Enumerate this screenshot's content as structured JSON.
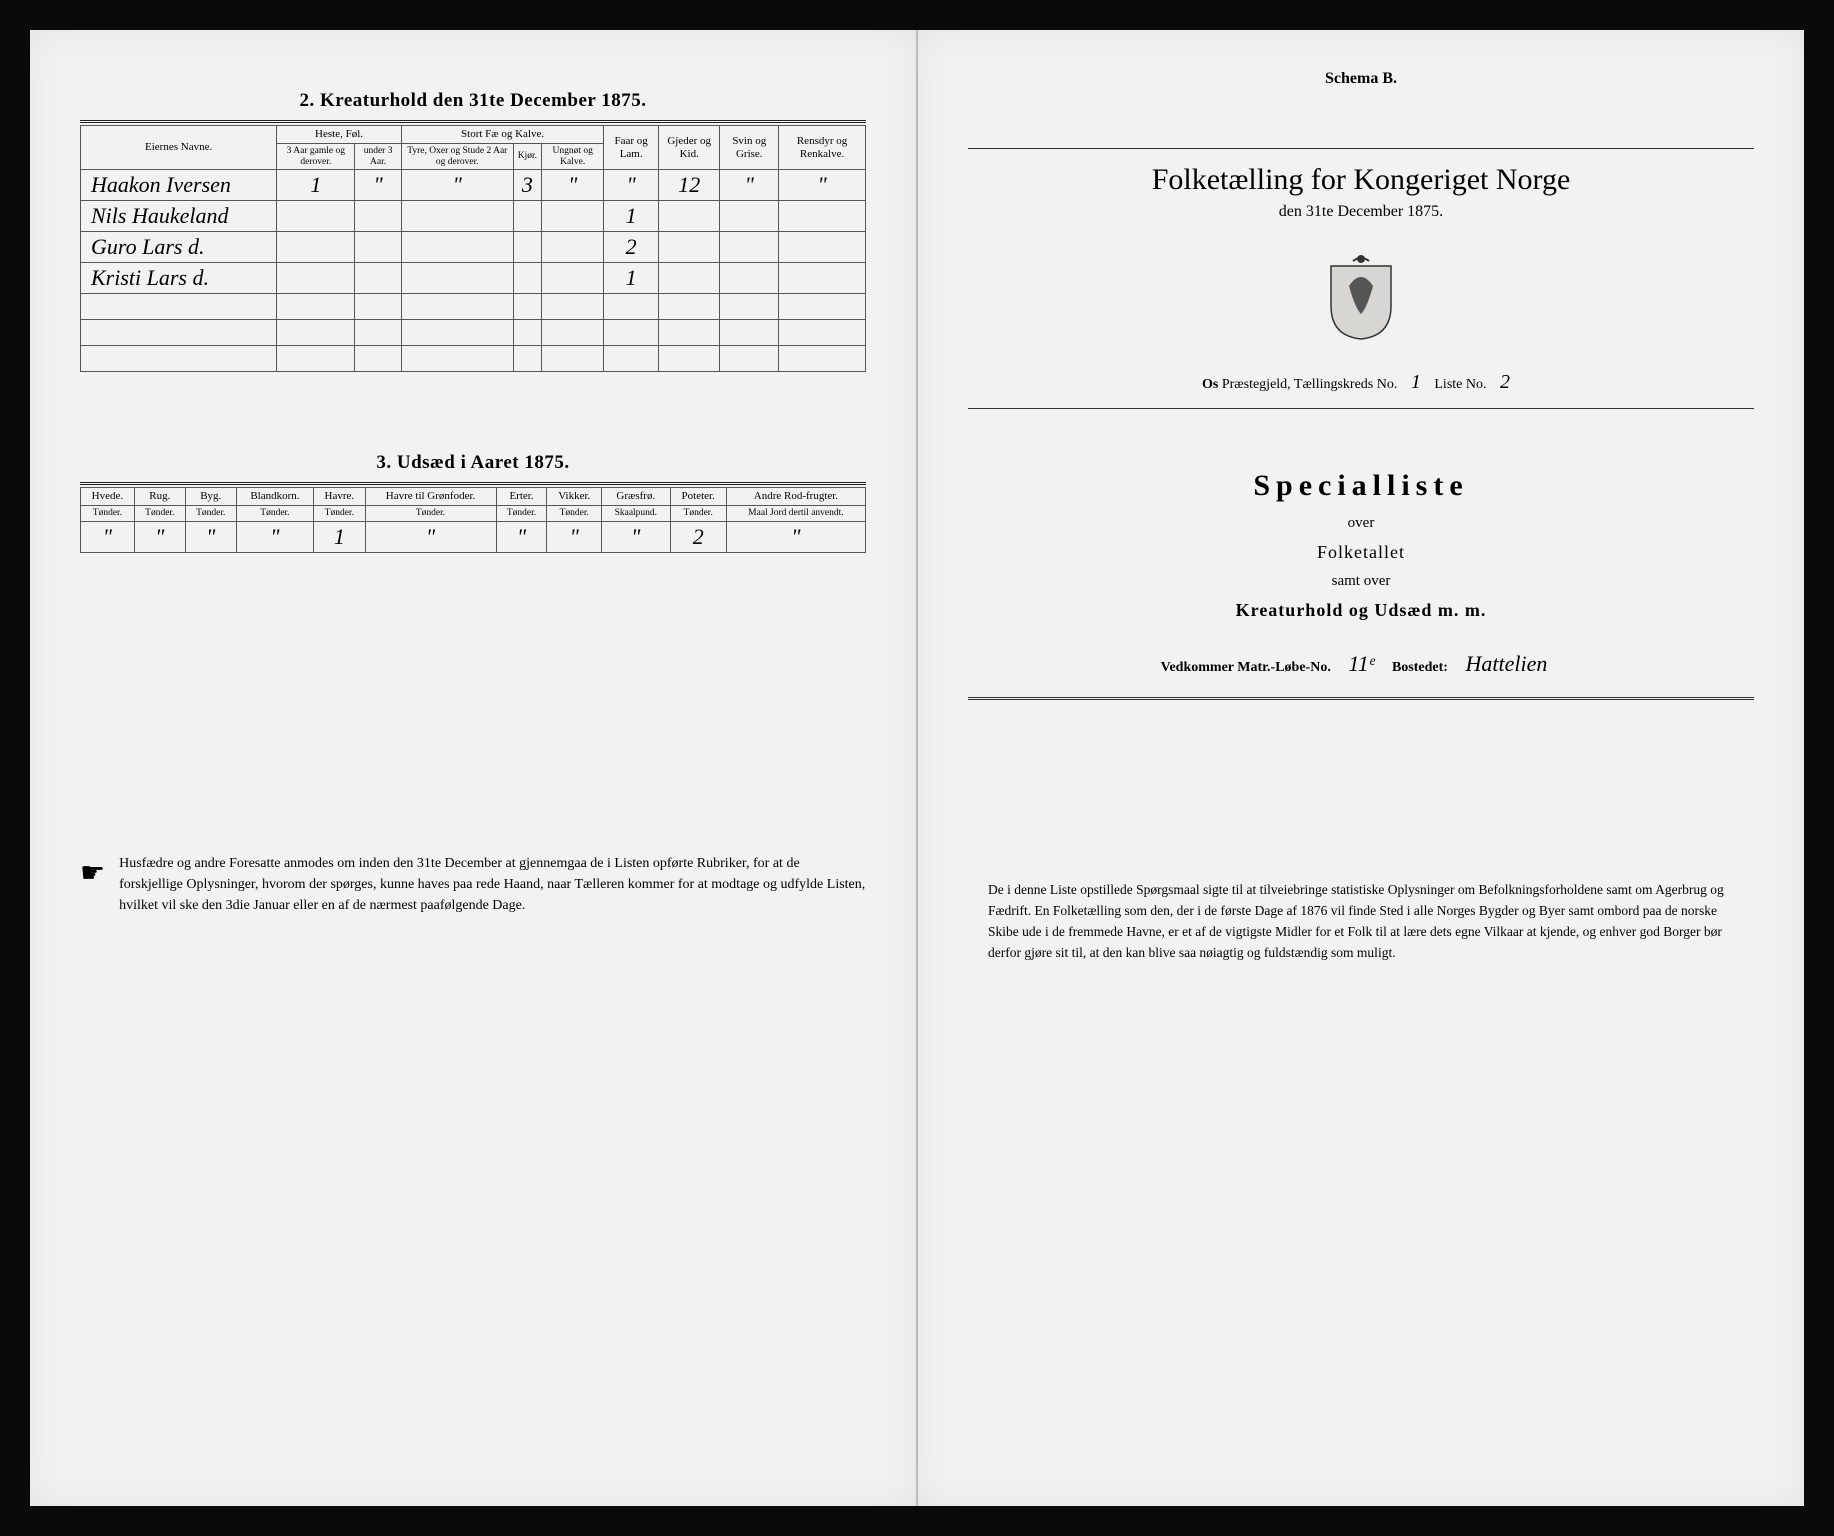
{
  "left": {
    "section2_title": "2.  Kreaturhold den 31te December 1875.",
    "table2": {
      "col_owner": "Eiernes Navne.",
      "grp_horses": "Heste, Føl.",
      "grp_cattle": "Stort Fæ og Kalve.",
      "col_sheep": "Faar og Lam.",
      "col_goats": "Gjeder og Kid.",
      "col_pigs": "Svin og Grise.",
      "col_reindeer": "Rensdyr og Renkalve.",
      "sub_h1": "3 Aar gamle og derover.",
      "sub_h2": "under 3 Aar.",
      "sub_c1": "Tyre, Oxer og Stude 2 Aar og derover.",
      "sub_c2": "Kjør.",
      "sub_c3": "Ungnøt og Kalve.",
      "rows": [
        {
          "name": "Haakon Iversen",
          "h1": "1",
          "h2": "\"",
          "c1": "\"",
          "c2": "3",
          "c3": "\"",
          "sheep": "\"",
          "goats": "12",
          "pigs": "\"",
          "rein": "\""
        },
        {
          "name": "Nils Haukeland",
          "h1": "",
          "h2": "",
          "c1": "",
          "c2": "",
          "c3": "",
          "sheep": "1",
          "goats": "",
          "pigs": "",
          "rein": ""
        },
        {
          "name": "Guro Lars d.",
          "h1": "",
          "h2": "",
          "c1": "",
          "c2": "",
          "c3": "",
          "sheep": "2",
          "goats": "",
          "pigs": "",
          "rein": ""
        },
        {
          "name": "Kristi Lars d.",
          "h1": "",
          "h2": "",
          "c1": "",
          "c2": "",
          "c3": "",
          "sheep": "1",
          "goats": "",
          "pigs": "",
          "rein": ""
        }
      ]
    },
    "section3_title": "3.  Udsæd i Aaret 1875.",
    "table3": {
      "cols": [
        {
          "h": "Hvede.",
          "u": "Tønder."
        },
        {
          "h": "Rug.",
          "u": "Tønder."
        },
        {
          "h": "Byg.",
          "u": "Tønder."
        },
        {
          "h": "Blandkorn.",
          "u": "Tønder."
        },
        {
          "h": "Havre.",
          "u": "Tønder."
        },
        {
          "h": "Havre til Grønfoder.",
          "u": "Tønder."
        },
        {
          "h": "Erter.",
          "u": "Tønder."
        },
        {
          "h": "Vikker.",
          "u": "Tønder."
        },
        {
          "h": "Græsfrø.",
          "u": "Skaalpund."
        },
        {
          "h": "Poteter.",
          "u": "Tønder."
        },
        {
          "h": "Andre Rod-frugter.",
          "u": "Maal Jord dertil anvendt."
        }
      ],
      "row": [
        "\"",
        "\"",
        "\"",
        "\"",
        "1",
        "\"",
        "\"",
        "\"",
        "\"",
        "2",
        "\""
      ]
    },
    "footnote": "Husfædre og andre Foresatte anmodes om inden den 31te December at gjennemgaa de i Listen opførte Rubriker, for at de forskjellige Oplysninger, hvorom der spørges, kunne haves paa rede Haand, naar Tælleren kommer for at modtage og udfylde Listen, hvilket vil ske den 3die Januar eller en af de nærmest paafølgende Dage."
  },
  "right": {
    "schema": "Schema B.",
    "main_title": "Folketælling for Kongeriget Norge",
    "sub_date": "den 31te December 1875.",
    "parish_pre": "Os",
    "parish_mid": "Præstegjeld,  Tællingskreds No.",
    "parish_no": "1",
    "liste_label": "Liste No.",
    "liste_no": "2",
    "special_title": "Specialliste",
    "over": "over",
    "folketallet": "Folketallet",
    "samt_over": "samt over",
    "kreatur": "Kreaturhold og Udsæd m. m.",
    "matr_label": "Vedkommer Matr.-Løbe-No.",
    "matr_no": "11ᵉ",
    "bostedet_label": "Bostedet:",
    "bostedet": "Hattelien",
    "disclaimer": "De i denne Liste opstillede Spørgsmaal sigte til at tilveiebringe statistiske Oplysninger om Befolkningsforholdene samt om Agerbrug og Fædrift.  En Folketælling som den, der i de første Dage af 1876 vil finde Sted i alle Norges Bygder og Byer samt ombord paa de norske Skibe ude i de fremmede Havne, er et af de vigtigste Midler for et Folk til at lære dets egne Vilkaar at kjende, og enhver god Borger bør derfor gjøre sit til, at den kan blive saa nøiagtig og fuldstændig som muligt."
  },
  "colors": {
    "paper": "#f2f2f0",
    "ink": "#222222",
    "border": "#555555",
    "frame": "#0a0a0a"
  }
}
